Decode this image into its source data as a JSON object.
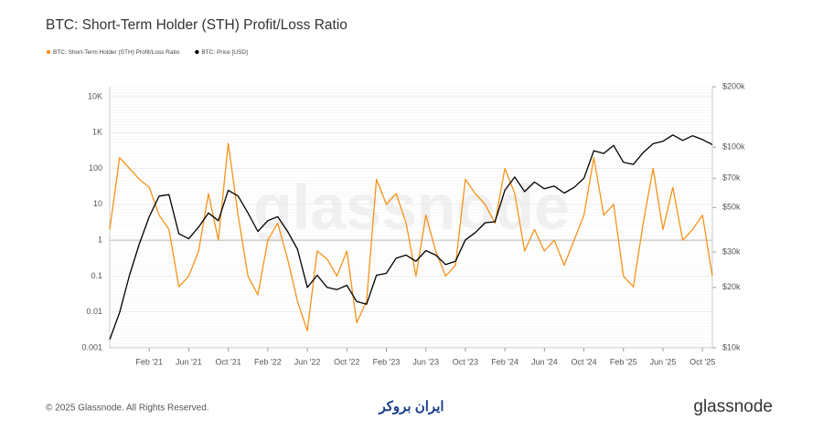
{
  "chart_data": {
    "type": "line",
    "title": "BTC: Short-Term Holder (STH) Profit/Loss Ratio",
    "categories": [
      null,
      null,
      null,
      null,
      "Feb '21",
      null,
      null,
      null,
      "Jun '21",
      null,
      null,
      null,
      "Oct '21",
      null,
      null,
      null,
      "Feb '22",
      null,
      null,
      null,
      "Jun '22",
      null,
      null,
      null,
      "Oct '22",
      null,
      null,
      null,
      "Feb '23",
      null,
      null,
      null,
      "Jun '23",
      null,
      null,
      null,
      "Oct '23",
      null,
      null,
      null,
      "Feb '24",
      null,
      null,
      null,
      "Jun '24",
      null,
      null,
      null,
      "Oct '24",
      null,
      null,
      null,
      "Feb '25",
      null,
      null,
      null,
      "Jun '25",
      null,
      null,
      null,
      "Oct '25",
      null
    ],
    "series": [
      {
        "name": "BTC: Short-Term Holder (STH) Profit/Loss Ratio",
        "color": "#f7931a",
        "values": [
          2,
          200,
          100,
          50,
          30,
          5,
          2,
          0.05,
          0.1,
          0.5,
          20,
          1,
          500,
          5,
          0.1,
          0.03,
          1,
          3,
          0.3,
          0.02,
          0.003,
          0.5,
          0.3,
          0.1,
          0.5,
          0.005,
          0.02,
          50,
          10,
          20,
          3,
          0.1,
          5,
          0.5,
          0.1,
          0.2,
          50,
          20,
          10,
          3,
          100,
          20,
          0.5,
          2,
          0.5,
          1,
          0.2,
          1,
          5,
          200,
          5,
          10,
          0.1,
          0.05,
          3,
          100,
          2,
          30,
          1,
          2,
          5,
          0.1
        ]
      },
      {
        "name": "BTC: Price [USD]",
        "color": "#000000",
        "axis": "y2",
        "values": [
          11000,
          15000,
          23000,
          33000,
          45000,
          57000,
          58000,
          37000,
          35000,
          40000,
          47000,
          43000,
          61000,
          57000,
          47000,
          38000,
          43000,
          45000,
          38000,
          31000,
          20000,
          23000,
          20000,
          19500,
          20500,
          17000,
          16500,
          23000,
          23500,
          28000,
          29000,
          27000,
          30500,
          29000,
          26000,
          27000,
          34500,
          37500,
          42000,
          42500,
          61000,
          71000,
          60000,
          67000,
          62000,
          64000,
          59000,
          63000,
          70000,
          96000,
          93000,
          102000,
          84000,
          82000,
          94000,
          104000,
          107000,
          115000,
          108000,
          114000,
          109000,
          103000
        ]
      }
    ],
    "ylim": [
      0.001,
      19000
    ],
    "yticks": [
      0.001,
      0.01,
      0.1,
      1,
      10,
      100,
      {
        "value": 1000,
        "label": "1K"
      },
      {
        "value": 10000,
        "label": "10K"
      }
    ],
    "ylog": true,
    "y2lim": [
      10000,
      200000
    ],
    "y2ticks": [
      {
        "value": 10000,
        "label": "$10k"
      },
      {
        "value": 20000,
        "label": "$20k"
      },
      {
        "value": 30000,
        "label": "$30k"
      },
      {
        "value": 50000,
        "label": "$50k"
      },
      {
        "value": 70000,
        "label": "$70k"
      },
      {
        "value": 100000,
        "label": "$100k"
      },
      {
        "value": 200000,
        "label": "$200k"
      }
    ],
    "y2log": true,
    "grid": true,
    "legend": "top-left",
    "watermark": "glassnode",
    "footer": "© 2025 Glassnode. All Rights Reserved.",
    "sponsor": "ایران بروکر"
  }
}
